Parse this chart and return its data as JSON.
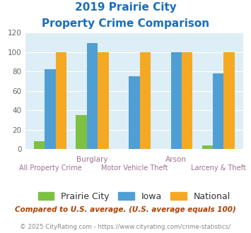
{
  "title_line1": "2019 Prairie City",
  "title_line2": "Property Crime Comparison",
  "categories": [
    "All Property Crime",
    "Burglary",
    "Motor Vehicle Theft",
    "Arson",
    "Larceny & Theft"
  ],
  "prairie_city": [
    8,
    35,
    0,
    0,
    4
  ],
  "iowa": [
    82,
    109,
    75,
    100,
    78
  ],
  "national": [
    100,
    100,
    100,
    100,
    100
  ],
  "prairie_city_color": "#7dc142",
  "iowa_color": "#4f9fd4",
  "national_color": "#f5a923",
  "bg_color": "#ddeef6",
  "title_color": "#1a6ebd",
  "ylim": [
    0,
    120
  ],
  "yticks": [
    0,
    20,
    40,
    60,
    80,
    100,
    120
  ],
  "top_labels": [
    [
      1,
      "Burglary"
    ],
    [
      3,
      "Arson"
    ]
  ],
  "bottom_labels": [
    [
      0,
      "All Property Crime"
    ],
    [
      2,
      "Motor Vehicle Theft"
    ],
    [
      4,
      "Larceny & Theft"
    ]
  ],
  "label_color": "#a07090",
  "footnote": "Compared to U.S. average. (U.S. average equals 100)",
  "copyright": "© 2025 CityRating.com - https://www.cityrating.com/crime-statistics/",
  "footnote_color": "#b04000",
  "copyright_color": "#888888",
  "legend_labels": [
    "Prairie City",
    "Iowa",
    "National"
  ]
}
